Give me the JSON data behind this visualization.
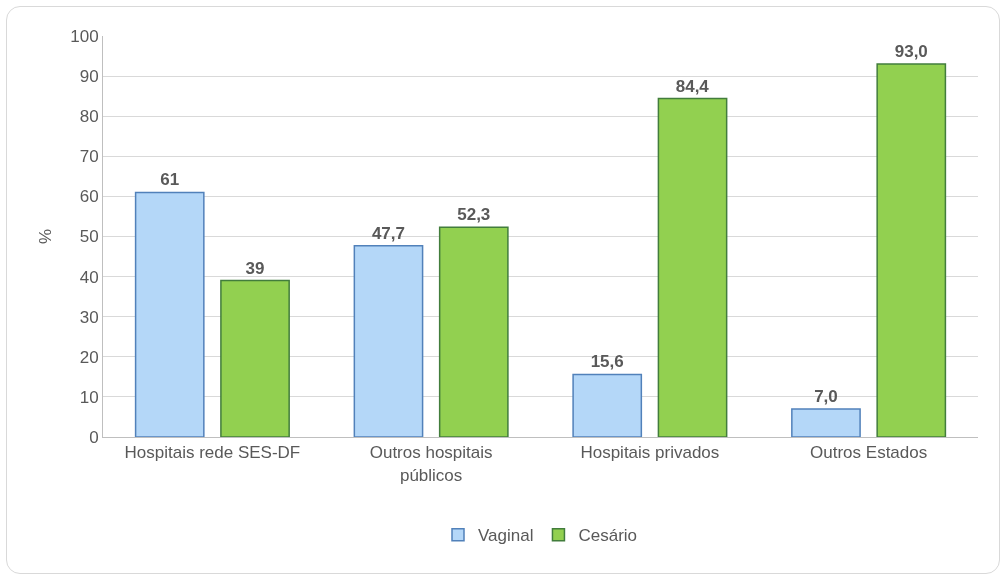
{
  "chart_data": {
    "type": "bar",
    "ylabel": "%",
    "categories": [
      "Hospitais rede SES-DF",
      "Outros hospitais públicos",
      "Hospitais privados",
      "Outros Estados"
    ],
    "series": [
      {
        "name": "Vaginal",
        "color": "#b4d7f8",
        "values": [
          61,
          47.7,
          15.6,
          7.0
        ],
        "value_labels": [
          "61",
          "47,7",
          "15,6",
          "7,0"
        ]
      },
      {
        "name": "Cesário",
        "color": "#92d050",
        "values": [
          39,
          52.3,
          84.4,
          93.0
        ],
        "value_labels": [
          "39",
          "52,3",
          "84,4",
          "93,0"
        ]
      }
    ],
    "ylim": [
      0,
      100
    ],
    "yticks": [
      0,
      10,
      20,
      30,
      40,
      50,
      60,
      70,
      80,
      90,
      100
    ],
    "grid": "y",
    "legend": "bottom"
  }
}
